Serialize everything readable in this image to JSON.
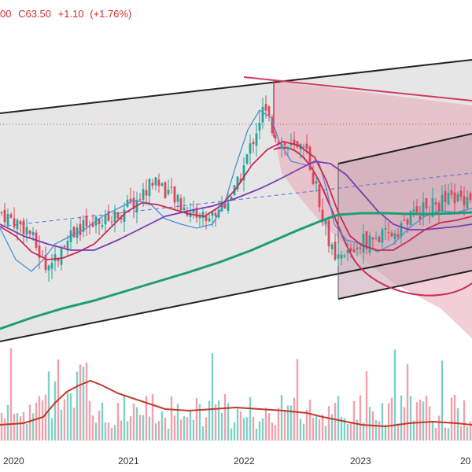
{
  "legend": {
    "open_fragment": "00",
    "close_label": "C",
    "close_value": "63.50",
    "change": "+1.10",
    "change_pct": "(+1.76%)"
  },
  "colors": {
    "up": "#26a69a",
    "down": "#e0465b",
    "ma_fast": "#4a8fd6",
    "ma_mid": "#cc2b55",
    "ma_slow": "#7a3db0",
    "ma_long": "#1f9d73",
    "volume_ma": "#c0392b",
    "channel": "#222222",
    "pink_fill": "#e8a6b6",
    "text_red": "#d32f2f"
  },
  "chart_data": {
    "type": "candlestick",
    "x_axis_labels": [
      "2020",
      "2021",
      "2022",
      "2023",
      "20"
    ],
    "price_trend_keypoints": [
      [
        "2019-10",
        50
      ],
      [
        "2020-01",
        47
      ],
      [
        "2020-03",
        40
      ],
      [
        "2020-06",
        47
      ],
      [
        "2020-09",
        48
      ],
      [
        "2021-01",
        52
      ],
      [
        "2021-03",
        56
      ],
      [
        "2021-06",
        51
      ],
      [
        "2021-09",
        49
      ],
      [
        "2021-12",
        54
      ],
      [
        "2022-03",
        68
      ],
      [
        "2022-05",
        62
      ],
      [
        "2022-08",
        60
      ],
      [
        "2022-11",
        41
      ],
      [
        "2023-02",
        45
      ],
      [
        "2023-05",
        46
      ],
      [
        "2023-08",
        50
      ],
      [
        "2023-11",
        52
      ],
      [
        "2024-02",
        53
      ]
    ],
    "overlays": [
      "moving-average-fast",
      "moving-average-mid",
      "moving-average-slow",
      "moving-average-long",
      "parallel-channel",
      "triangle-zone",
      "arc-zone",
      "dashed-trendline",
      "dotted-level"
    ],
    "volume": {
      "visible": true,
      "has_moving_average": true
    },
    "grid": false,
    "legend_placement": "top-left"
  }
}
